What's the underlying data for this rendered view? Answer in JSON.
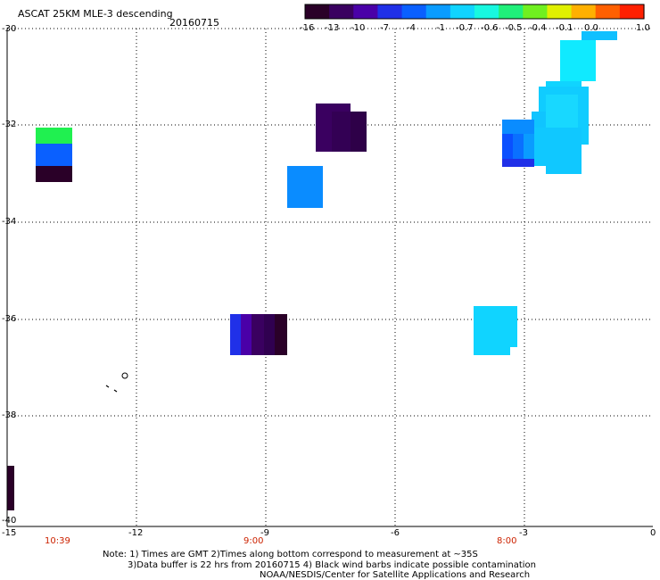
{
  "header": {
    "title": "ASCAT 25KM MLE-3 descending",
    "date": "20160715"
  },
  "colorbar": {
    "ticks": [
      "-16",
      "-13",
      "-10",
      "-7",
      "-4",
      "-1",
      "-0.7",
      "-0.6",
      "-0.5",
      "-0.4",
      "-0.1",
      "0.0",
      "1.0"
    ],
    "colors": [
      "#2a0028",
      "#3a0060",
      "#4a00a8",
      "#2030e8",
      "#0a60ff",
      "#0a9cff",
      "#10d4ff",
      "#18f8e0",
      "#20f07a",
      "#70f020",
      "#e0f000",
      "#ffb000",
      "#ff6000",
      "#ff2000"
    ]
  },
  "map": {
    "lat_ticks": [
      "-30",
      "-32",
      "-34",
      "-36",
      "-38",
      "-40"
    ],
    "lon_ticks": [
      "-15",
      "-12",
      "-9",
      "-6",
      "-3",
      "0"
    ],
    "pass_times": [
      "10:39",
      "9:00",
      "8:00"
    ],
    "cells": [
      {
        "lon": -14.45,
        "lat": -32.15,
        "color": "#20f050"
      },
      {
        "lon": -14.45,
        "lat": -32.55,
        "color": "#0a60ff"
      },
      {
        "lon": -14.45,
        "lat": -32.95,
        "color": "#2a0028"
      },
      {
        "lon": -14.9,
        "lat": -39.0,
        "color": "#2a0028"
      },
      {
        "lon": -7.5,
        "lat": -32.0,
        "color": "#3a0060"
      },
      {
        "lon": -7.9,
        "lat": -33.25,
        "color": "#0a8cff"
      },
      {
        "lon": -9.3,
        "lat": -36.1,
        "color": "#3a0060"
      },
      {
        "lon": -3.6,
        "lat": -36.3,
        "color": "#10d4ff"
      },
      {
        "lon": -1.8,
        "lat": -32.2,
        "color": "#10d4ff"
      },
      {
        "lon": -3.2,
        "lat": -32.5,
        "color": "#0a60ff"
      },
      {
        "lon": -1.8,
        "lat": -30.8,
        "color": "#10eaff"
      }
    ]
  },
  "footer": {
    "note_line1": "Note: 1) Times are GMT 2)Times along bottom correspond to measurement at ~35S",
    "note_line2": "3)Data buffer is 22 hrs from 20160715 4) Black wind barbs indicate possible contamination",
    "credit": "NOAA/NESDIS/Center for Satellite Applications and Research"
  }
}
